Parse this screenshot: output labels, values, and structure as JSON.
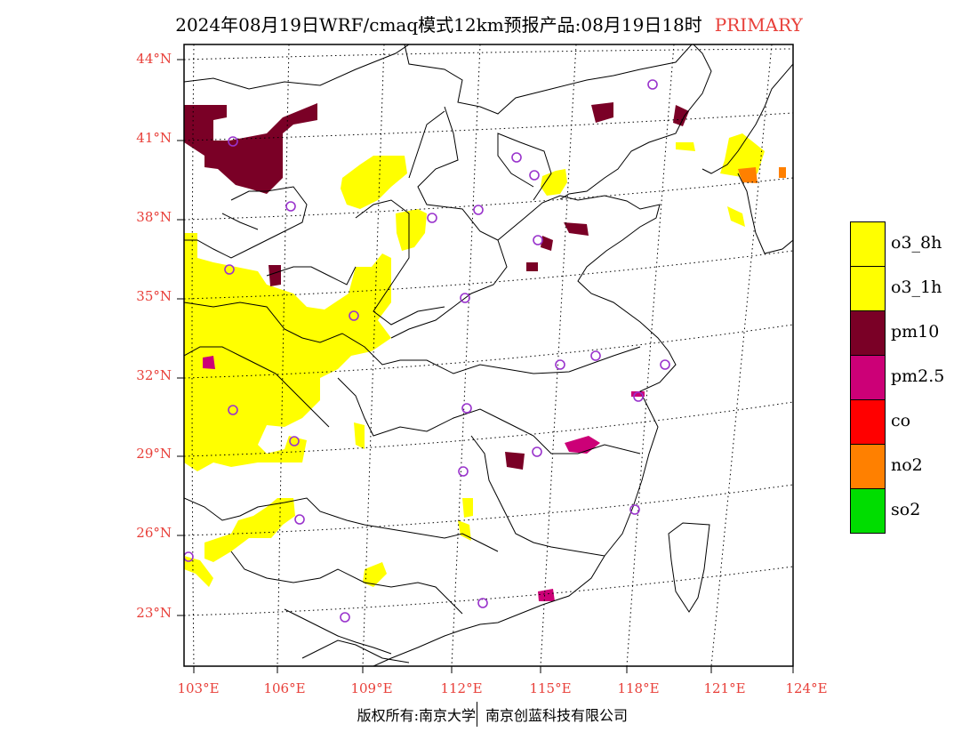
{
  "title": {
    "text": "2024年08月19日WRF/cmaq模式12km预报产品:08月19日18时",
    "badge": "PRIMARY"
  },
  "map": {
    "lat_labels": [
      "44°N",
      "41°N",
      "38°N",
      "35°N",
      "32°N",
      "29°N",
      "26°N",
      "23°N"
    ],
    "lon_labels": [
      "103°E",
      "106°E",
      "109°E",
      "112°E",
      "115°E",
      "118°E",
      "121°E",
      "124°E"
    ],
    "colors": {
      "frame": "#000000",
      "coast": "#000000",
      "grid": "#000000",
      "station": "#9933cc"
    }
  },
  "legend": {
    "items": [
      {
        "label": "o3_8h",
        "color": "#ffff00"
      },
      {
        "label": "o3_1h",
        "color": "#ffff00"
      },
      {
        "label": "pm10",
        "color": "#7a0026"
      },
      {
        "label": "pm2.5",
        "color": "#cc0077"
      },
      {
        "label": "co",
        "color": "#ff0000"
      },
      {
        "label": "no2",
        "color": "#ff8000"
      },
      {
        "label": "so2",
        "color": "#00dd00"
      }
    ]
  },
  "footer": {
    "copyright": "版权所有:南京大学",
    "company": "南京创蓝科技有限公司"
  }
}
